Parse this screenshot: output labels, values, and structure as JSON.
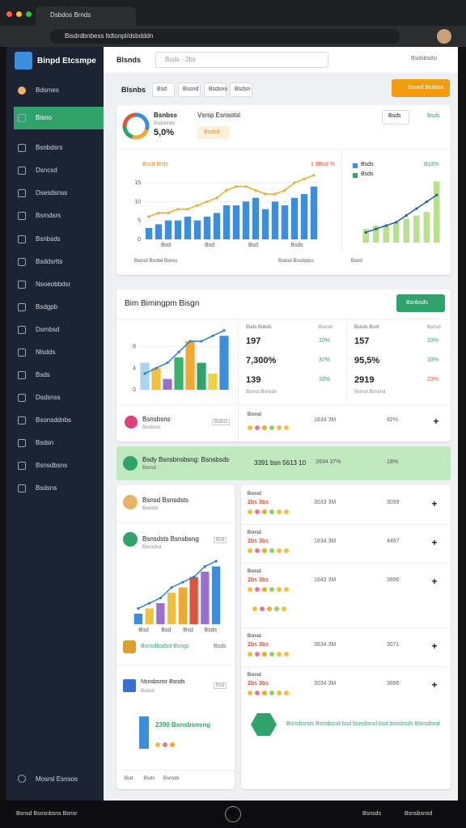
{
  "browser": {
    "tab": "Dsbdos Brnds",
    "url": "Bisdrdbnbess ltdtonpl/dsbdddn"
  },
  "sidebar": {
    "brand": "Binpd Etcsmpe",
    "items": [
      "Bdsmes",
      "Bisno",
      "Bsnbdsrs",
      "Dsncsd",
      "Dsesdsnss",
      "Bsmdsrs",
      "Bsnbsds",
      "Bsddsrtts",
      "Nsoeobbdsr",
      "Bsdgpb",
      "Dsmbsd",
      "Nlsdds",
      "Bsds",
      "Dsdsnss",
      "Bsonsddnbs",
      "Bsdsn",
      "Bsnsdbsns",
      "Bsdsns"
    ],
    "footer": "Mosrsl Esnsos"
  },
  "header": {
    "title": "Blsnds",
    "search": "Bsds · 2bs",
    "right": "Bsdsbsdsr"
  },
  "toolbar": {
    "title": "Blsnbs",
    "tabs": [
      "Bsd",
      "Bssnd",
      "Bsdsns",
      "Bsdsn"
    ],
    "button": "Bsnsd Bsdsss"
  },
  "overview": {
    "label": "Bsnbss",
    "sub": "Bsdsbnds",
    "value": "5,0%",
    "title": "Vsrsp Esnsotsl",
    "badge": "Bsdsd",
    "select": "Bsds",
    "link": "Bsds",
    "donut": {
      "values": [
        30,
        25,
        20,
        25
      ],
      "colors": [
        "#3b8fdc",
        "#f0a830",
        "#2fa36b",
        "#e0523a"
      ]
    },
    "chart": {
      "legend_left": "Bssd Brds",
      "legend_right": "1 8Bsd %",
      "ylim": [
        0,
        18
      ],
      "yticks": [
        0,
        5,
        10,
        15
      ],
      "xlabels": [
        "Bsd",
        "Bsd",
        "Bsd",
        "Bsds"
      ],
      "bars": [
        3,
        4,
        5,
        5,
        6,
        5,
        6,
        7,
        9,
        9,
        10,
        11,
        8,
        10,
        9,
        11,
        12,
        14
      ],
      "bar_color": "#3b8fdc",
      "line": [
        6,
        7,
        7,
        8,
        8,
        9,
        10,
        11,
        13,
        14,
        14,
        13,
        12,
        12,
        13,
        15,
        16,
        17
      ],
      "line_color": "#f0a830"
    },
    "footer": [
      "Bsnsd Bsnbd Bsnss",
      "Bsdsd Bssdsbss",
      "Bsnd"
    ],
    "side_chart": {
      "legend": [
        "Bsds",
        "Bsds"
      ],
      "pct": "Bs3%",
      "ylim": [
        0,
        20
      ],
      "bars": [
        4,
        5,
        5,
        6,
        7,
        8,
        9,
        18
      ],
      "bar_color": "#b9e08a",
      "line": [
        3,
        4,
        5,
        6,
        8,
        10,
        12,
        14
      ],
      "line_color": "#1f5fa8"
    }
  },
  "performance": {
    "title": "Bim Bimingpm Bisgn",
    "button": "Bsnbsds",
    "chart": {
      "ylim": [
        0,
        12
      ],
      "yticks": [
        0,
        4,
        8
      ],
      "bars": [
        5,
        4,
        2,
        6,
        9,
        5,
        3,
        10
      ],
      "colors": [
        "#a8d4f0",
        "#f0c040",
        "#9b6fd0",
        "#3bb36b",
        "#f0a830",
        "#2fa36b",
        "#f0d040",
        "#3b8fdc"
      ],
      "line": [
        3,
        4,
        5,
        7,
        9,
        9,
        10,
        11
      ],
      "line_color": "#2a7fd0"
    },
    "col_a": {
      "head": [
        "Bsds Bsbds",
        "Bsnsd"
      ],
      "rows": [
        [
          "197",
          "10%"
        ],
        [
          "7,300%",
          "37%"
        ],
        [
          "139",
          "33%"
        ]
      ],
      "foot": "Bsnsd Bsnsds"
    },
    "col_b": {
      "head": [
        "Bsnds Bsnt",
        "Bsnsd"
      ],
      "rows": [
        [
          "157",
          "33%"
        ],
        [
          "95,5%",
          "33%"
        ],
        [
          "2919",
          "23%"
        ]
      ],
      "foot": "Bsnsd Bsnsnd"
    }
  },
  "rows": [
    {
      "name": "Bsnsbsns",
      "sub": "Bssbsss",
      "tag": "Bsbss",
      "label": "Bsnsd",
      "amount": "1834 3M",
      "pct": "82%"
    }
  ],
  "highlight": {
    "name": "Bsdy Bsnsbnsbsng: Bsnsbsds",
    "sub": "Bsnsd",
    "a": "3391 bsn 5613 10",
    "b": "3934 37%",
    "pct": "18%"
  },
  "left_cards": {
    "c1": {
      "title": "Bsnsd Bsnsdsts",
      "sub": "Bsdsbs"
    },
    "c2": {
      "title": "Bsnsdsts Bsnsbsng",
      "sub": "Bsnsdsd",
      "tag": "Bsd"
    },
    "chart": {
      "ylim": [
        0,
        12
      ],
      "bars": [
        2,
        3,
        4,
        6,
        7,
        9,
        10,
        11
      ],
      "colors": [
        "#3b8fdc",
        "#f0c040",
        "#9b6fd0",
        "#f0c040",
        "#f0a830",
        "#e0523a",
        "#9b6fd0",
        "#3b8fdc"
      ],
      "line": [
        3,
        4,
        5,
        7,
        8,
        9,
        11,
        12
      ],
      "line_color": "#2a7fd0",
      "xlabels": [
        "Bsd",
        "Bsd",
        "Bsd",
        "Bsds"
      ]
    },
    "c3": {
      "title": "Bsnsdbsdsd Bsngs",
      "tag": "Bsds"
    },
    "c4": {
      "title": "Nsnsbsnsr Bsnds",
      "sub": "Bsnsd",
      "tag": "Bsd"
    },
    "big": "2390 Bsnsbsnsng",
    "footer": [
      "Bsd",
      "Bsds",
      "Bsnsds"
    ]
  },
  "right_rows": [
    {
      "title": "Bsnsd",
      "sub": "2bs 3bs",
      "amount": "3033 3M",
      "pct": "3099"
    },
    {
      "title": "Bsnsd",
      "sub": "2bs 3bs",
      "amount": "1834 3M",
      "pct": "4497"
    },
    {
      "title": "Bsnsd",
      "sub": "2bs 3bs",
      "amount": "1843 3M",
      "pct": "3896"
    },
    {
      "title": "Bsnsd",
      "sub": "2bs 3bs",
      "amount": "3834 3M",
      "pct": "3071"
    },
    {
      "title": "Bsnsd",
      "sub": "2bs 3bs",
      "amount": "3034 3M",
      "pct": "3896"
    }
  ],
  "promo": "Bsnsbsnds Bsnsbsnd bsd bsnsbsnd bsd bsnsbsds Bsnsdsnd",
  "bottom": {
    "left": "Bsnsd Bsnsnbsns Bsnsr",
    "right": [
      "Bsnsds",
      "Bsnsbsnsd"
    ]
  }
}
